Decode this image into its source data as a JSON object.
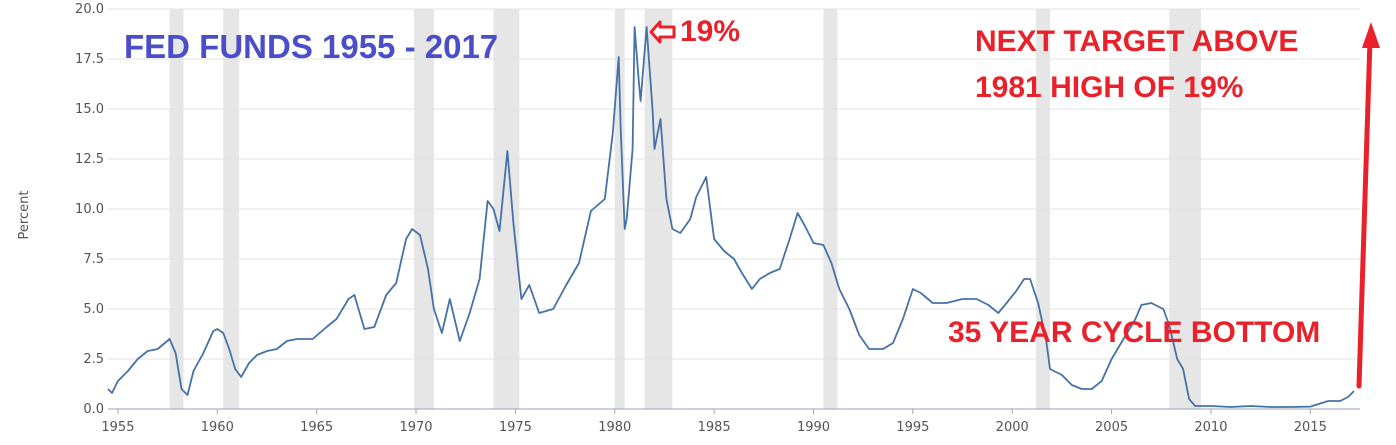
{
  "chart_data": {
    "type": "line",
    "title": "FED FUNDS 1955 - 2017",
    "ylabel": "Percent",
    "xlabel": "",
    "xlim": [
      1954.5,
      2017.5
    ],
    "ylim": [
      0,
      20
    ],
    "yticks": [
      0,
      2.5,
      5,
      7.5,
      10,
      12.5,
      15,
      17.5,
      20
    ],
    "ytick_labels": [
      "0.0",
      "2.5",
      "5.0",
      "7.5",
      "10.0",
      "12.5",
      "15.0",
      "17.5",
      "20.0"
    ],
    "xticks": [
      1955,
      1960,
      1965,
      1970,
      1975,
      1980,
      1985,
      1990,
      1995,
      2000,
      2005,
      2010,
      2015
    ],
    "xtick_labels": [
      "1955",
      "1960",
      "1965",
      "1970",
      "1975",
      "1980",
      "1985",
      "1990",
      "1995",
      "2000",
      "2005",
      "2010",
      "2015"
    ],
    "grid": true,
    "colors": {
      "line": "#4572a7",
      "recession": "#e6e6e6",
      "annotation": "#e8212a",
      "title": "#4a4fc9",
      "axis": "#9aa4b4"
    },
    "recessions": [
      [
        1957.6,
        1958.3
      ],
      [
        1960.3,
        1961.1
      ],
      [
        1969.9,
        1970.9
      ],
      [
        1973.9,
        1975.2
      ],
      [
        1980.0,
        1980.5
      ],
      [
        1981.5,
        1982.9
      ],
      [
        1990.5,
        1991.2
      ],
      [
        2001.2,
        2001.9
      ],
      [
        2007.9,
        2009.5
      ]
    ],
    "series": [
      {
        "name": "",
        "x": [
          1954.5,
          1954.7,
          1955.0,
          1955.5,
          1956.0,
          1956.5,
          1957.0,
          1957.6,
          1957.9,
          1958.2,
          1958.5,
          1958.8,
          1959.3,
          1959.8,
          1960.0,
          1960.3,
          1960.6,
          1960.9,
          1961.2,
          1961.6,
          1962.0,
          1962.5,
          1963.0,
          1963.5,
          1964.0,
          1964.8,
          1965.5,
          1966.0,
          1966.6,
          1966.9,
          1967.4,
          1967.9,
          1968.5,
          1969.0,
          1969.5,
          1969.8,
          1970.2,
          1970.6,
          1970.9,
          1971.3,
          1971.7,
          1972.2,
          1972.7,
          1973.2,
          1973.6,
          1973.9,
          1974.2,
          1974.6,
          1974.9,
          1975.3,
          1975.7,
          1976.2,
          1976.9,
          1977.5,
          1978.2,
          1978.8,
          1979.5,
          1979.9,
          1980.2,
          1980.3,
          1980.5,
          1980.6,
          1980.9,
          1981.0,
          1981.2,
          1981.3,
          1981.6,
          1981.9,
          1982.0,
          1982.3,
          1982.6,
          1982.9,
          1983.3,
          1983.8,
          1984.1,
          1984.6,
          1985.0,
          1985.5,
          1986.0,
          1986.4,
          1986.9,
          1987.3,
          1987.8,
          1988.3,
          1988.8,
          1989.2,
          1989.6,
          1990.0,
          1990.5,
          1990.9,
          1991.3,
          1991.8,
          1992.3,
          1992.8,
          1993.5,
          1994.0,
          1994.5,
          1995.0,
          1995.4,
          1996.0,
          1996.7,
          1997.5,
          1998.2,
          1998.8,
          1999.3,
          1999.8,
          2000.2,
          2000.6,
          2000.9,
          2001.3,
          2001.7,
          2001.9,
          2002.5,
          2003.0,
          2003.5,
          2004.0,
          2004.5,
          2005.0,
          2005.6,
          2006.2,
          2006.5,
          2007.0,
          2007.6,
          2007.9,
          2008.3,
          2008.6,
          2008.9,
          2009.2,
          2010.0,
          2011.0,
          2012.0,
          2013.0,
          2014.0,
          2015.0,
          2015.9,
          2016.5,
          2016.9,
          2017.2
        ],
        "values": [
          1.0,
          0.8,
          1.4,
          1.9,
          2.5,
          2.9,
          3.0,
          3.5,
          2.8,
          1.0,
          0.7,
          1.9,
          2.8,
          3.9,
          4.0,
          3.8,
          3.0,
          2.0,
          1.6,
          2.3,
          2.7,
          2.9,
          3.0,
          3.4,
          3.5,
          3.5,
          4.1,
          4.5,
          5.5,
          5.7,
          4.0,
          4.1,
          5.7,
          6.3,
          8.5,
          9.0,
          8.7,
          7.0,
          5.0,
          3.8,
          5.5,
          3.4,
          4.8,
          6.5,
          10.4,
          10.0,
          8.9,
          12.9,
          9.3,
          5.5,
          6.2,
          4.8,
          5.0,
          6.1,
          7.3,
          9.9,
          10.5,
          13.8,
          17.6,
          14.0,
          9.0,
          9.5,
          13.0,
          19.1,
          16.5,
          15.4,
          19.1,
          15.0,
          13.0,
          14.5,
          10.5,
          9.0,
          8.8,
          9.5,
          10.6,
          11.6,
          8.5,
          7.9,
          7.5,
          6.8,
          6.0,
          6.5,
          6.8,
          7.0,
          8.5,
          9.8,
          9.1,
          8.3,
          8.2,
          7.3,
          6.0,
          5.0,
          3.7,
          3.0,
          3.0,
          3.3,
          4.5,
          6.0,
          5.8,
          5.3,
          5.3,
          5.5,
          5.5,
          5.2,
          4.8,
          5.4,
          5.9,
          6.5,
          6.5,
          5.3,
          3.5,
          2.0,
          1.7,
          1.2,
          1.0,
          1.0,
          1.4,
          2.5,
          3.5,
          4.5,
          5.2,
          5.3,
          5.0,
          4.2,
          2.5,
          2.0,
          0.5,
          0.15,
          0.15,
          0.1,
          0.15,
          0.1,
          0.1,
          0.12,
          0.4,
          0.4,
          0.6,
          0.9
        ]
      }
    ],
    "annotations": {
      "peak_label": "19%",
      "target_line1": "NEXT TARGET ABOVE",
      "target_line2": "1981 HIGH OF 19%",
      "cycle_bottom": "35 YEAR CYCLE BOTTOM"
    }
  }
}
